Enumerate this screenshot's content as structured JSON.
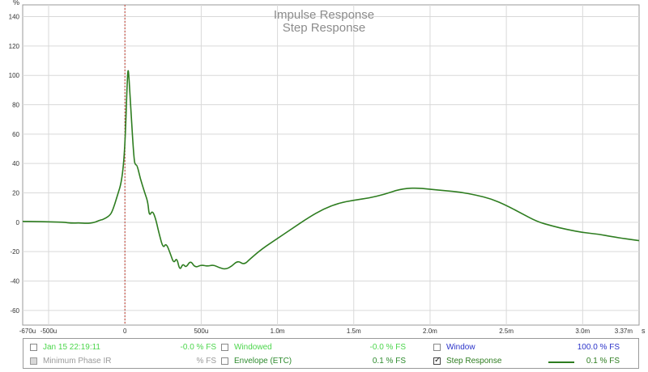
{
  "chart_data": {
    "type": "line",
    "title": "Impulse Response",
    "subtitle": "Step Response",
    "ylabel_unit": "%",
    "xlabel_unit": "s",
    "ylim": [
      -70,
      148
    ],
    "xlim": [
      -0.00067,
      0.00337
    ],
    "y_ticks": [
      140,
      120,
      100,
      80,
      60,
      40,
      20,
      0,
      -20,
      -40,
      -60
    ],
    "x_ticks": [
      {
        "value": -0.00067,
        "label": "-670u"
      },
      {
        "value": -0.0005,
        "label": "-500u"
      },
      {
        "value": 0,
        "label": "0"
      },
      {
        "value": 0.0005,
        "label": "500u"
      },
      {
        "value": 0.001,
        "label": "1.0m"
      },
      {
        "value": 0.0015,
        "label": "1.5m"
      },
      {
        "value": 0.002,
        "label": "2.0m"
      },
      {
        "value": 0.0025,
        "label": "2.5m"
      },
      {
        "value": 0.003,
        "label": "3.0m"
      },
      {
        "value": 0.00337,
        "label": "3.37m"
      }
    ],
    "grid": true,
    "marker_x": 0,
    "series": [
      {
        "name": "Step Response",
        "color": "#2e7d20",
        "points": [
          [
            -0.00067,
            0.6
          ],
          [
            -0.0006,
            0.5
          ],
          [
            -0.0005,
            0.3
          ],
          [
            -0.0004,
            0.0
          ],
          [
            -0.00035,
            -0.6
          ],
          [
            -0.0003,
            -0.4
          ],
          [
            -0.00025,
            -0.8
          ],
          [
            -0.0002,
            -0.2
          ],
          [
            -0.00017,
            1.2
          ],
          [
            -0.00014,
            2.0
          ],
          [
            -0.0001,
            4.5
          ],
          [
            -8e-05,
            8.0
          ],
          [
            -5e-05,
            18
          ],
          [
            -2e-05,
            28
          ],
          [
            0.0,
            50
          ],
          [
            1.5e-05,
            95
          ],
          [
            2e-05,
            104
          ],
          [
            2.5e-05,
            102
          ],
          [
            4e-05,
            75
          ],
          [
            6e-05,
            42
          ],
          [
            7e-05,
            39
          ],
          [
            8e-05,
            39
          ],
          [
            0.0001,
            30
          ],
          [
            0.00013,
            20
          ],
          [
            0.00015,
            14
          ],
          [
            0.00016,
            4
          ],
          [
            0.00018,
            8
          ],
          [
            0.0002,
            3
          ],
          [
            0.00022,
            -6
          ],
          [
            0.00025,
            -18
          ],
          [
            0.00027,
            -14
          ],
          [
            0.0003,
            -22
          ],
          [
            0.00032,
            -28
          ],
          [
            0.00034,
            -24
          ],
          [
            0.00036,
            -33
          ],
          [
            0.00038,
            -28
          ],
          [
            0.0004,
            -31
          ],
          [
            0.00043,
            -26
          ],
          [
            0.00046,
            -31
          ],
          [
            0.0005,
            -29
          ],
          [
            0.00054,
            -30
          ],
          [
            0.00058,
            -29
          ],
          [
            0.00062,
            -31
          ],
          [
            0.00066,
            -32
          ],
          [
            0.0007,
            -30
          ],
          [
            0.00074,
            -26
          ],
          [
            0.00078,
            -29
          ],
          [
            0.00082,
            -25
          ],
          [
            0.0009,
            -18
          ],
          [
            0.001,
            -11
          ],
          [
            0.0011,
            -4
          ],
          [
            0.0012,
            3
          ],
          [
            0.0013,
            9
          ],
          [
            0.0014,
            13
          ],
          [
            0.0015,
            15
          ],
          [
            0.0016,
            16.5
          ],
          [
            0.0017,
            19
          ],
          [
            0.0018,
            22.5
          ],
          [
            0.0019,
            23.5
          ],
          [
            0.002,
            22.5
          ],
          [
            0.0021,
            21.5
          ],
          [
            0.0022,
            20.5
          ],
          [
            0.0023,
            18.5
          ],
          [
            0.0024,
            16
          ],
          [
            0.0025,
            11.5
          ],
          [
            0.0026,
            6
          ],
          [
            0.0027,
            0.5
          ],
          [
            0.0028,
            -2.5
          ],
          [
            0.0029,
            -5
          ],
          [
            0.003,
            -7
          ],
          [
            0.0031,
            -8
          ],
          [
            0.0032,
            -10
          ],
          [
            0.00337,
            -12.5
          ]
        ]
      }
    ]
  },
  "legend": {
    "row1": [
      {
        "label": "Jan 15 22:19:11",
        "value": "-0.0 % FS",
        "color": "#4cd64c",
        "checked": false,
        "disabled": false
      },
      {
        "label": "Windowed",
        "value": "-0.0 % FS",
        "color": "#4cd64c",
        "checked": false,
        "disabled": false
      },
      {
        "label": "Window",
        "value": "100.0 % FS",
        "color": "#2b33c9",
        "checked": false,
        "disabled": false
      }
    ],
    "row2": [
      {
        "label": "Minimum Phase IR",
        "value": "% FS",
        "color": "#9a9a9a",
        "checked": false,
        "disabled": true
      },
      {
        "label": "Envelope (ETC)",
        "value": "0.1 % FS",
        "color": "#2e8b2e",
        "checked": false,
        "disabled": false
      },
      {
        "label": "Step Response",
        "value": "0.1 % FS",
        "color": "#2e7d20",
        "checked": true,
        "disabled": false
      }
    ]
  }
}
